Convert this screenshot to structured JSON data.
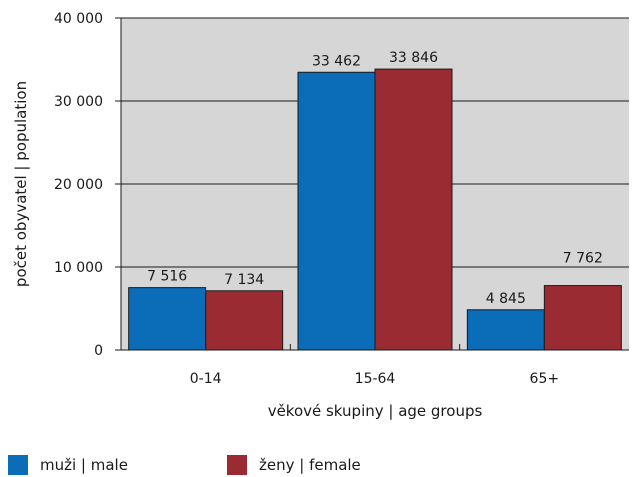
{
  "chart_data": {
    "type": "bar",
    "categories": [
      "0-14",
      "15-64",
      "65+"
    ],
    "series": [
      {
        "name": "muži | male",
        "values": [
          7516,
          33462,
          4845
        ],
        "labels": [
          "7 516",
          "33 462",
          "4 845"
        ],
        "color": "#0b6db8"
      },
      {
        "name": "ženy | female",
        "values": [
          7134,
          33846,
          7762
        ],
        "labels": [
          "7 134",
          "33 846",
          "7 762"
        ],
        "color": "#9b2b33"
      }
    ],
    "ylim": [
      0,
      40000
    ],
    "yticks": [
      0,
      10000,
      20000,
      30000,
      40000
    ],
    "ytick_labels": [
      "0",
      "10 000",
      "20 000",
      "30 000",
      "40 000"
    ],
    "xlabel": "věkové skupiny | age groups",
    "ylabel": "počet obyvatel | population",
    "grid": true,
    "plot_background": "#d6d6d6",
    "legend_position": "bottom"
  }
}
